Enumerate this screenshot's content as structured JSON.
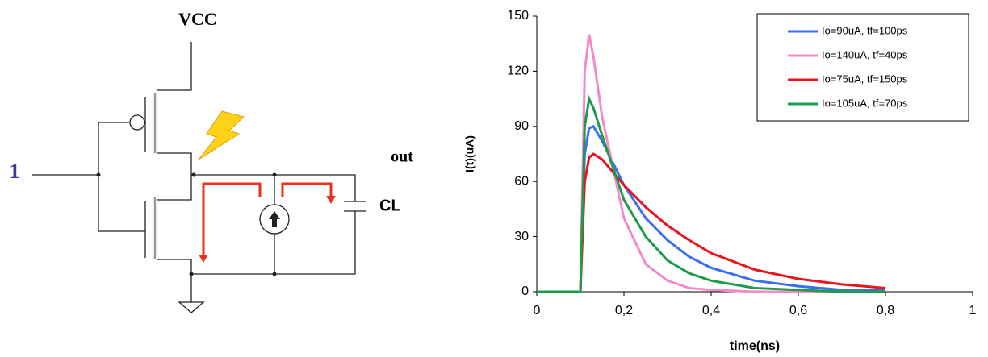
{
  "diagram": {
    "supply_label": "VCC",
    "input_label": "1",
    "output_label": "out",
    "capacitor_label": "CL"
  },
  "chart_data": {
    "type": "line",
    "x_label": "time(ns)",
    "y_label": "I(t)(uA)",
    "x": [
      0,
      0.1,
      0.105,
      0.11,
      0.12,
      0.13,
      0.15,
      0.2,
      0.25,
      0.3,
      0.35,
      0.4,
      0.5,
      0.6,
      0.7,
      0.8
    ],
    "series": [
      {
        "name": "Io=90uA, tf=100ps",
        "color": "#3a6ff0",
        "values": [
          0,
          0,
          40,
          75,
          89,
          90,
          82,
          58,
          40,
          28,
          19,
          13,
          6,
          3,
          1,
          1
        ]
      },
      {
        "name": "Io=140uA, tf=40ps",
        "color": "#f48ac8",
        "values": [
          0,
          0,
          60,
          120,
          140,
          128,
          95,
          40,
          15,
          6,
          2,
          1,
          0,
          0,
          0,
          0
        ]
      },
      {
        "name": "Io=75uA, tf=150ps",
        "color": "#e8141e",
        "values": [
          0,
          0,
          30,
          60,
          73,
          75,
          72,
          58,
          46,
          36,
          28,
          21,
          12,
          7,
          4,
          2
        ]
      },
      {
        "name": "Io=105uA, tf=70ps",
        "color": "#1f9a4a",
        "values": [
          0,
          0,
          45,
          90,
          105,
          100,
          85,
          50,
          30,
          17,
          10,
          6,
          2,
          1,
          0,
          0
        ]
      }
    ],
    "xlim": [
      0,
      1
    ],
    "ylim": [
      0,
      150
    ],
    "xticks": [
      0,
      {
        "value": 0.2,
        "label": "0,2"
      },
      {
        "value": 0.4,
        "label": "0,4"
      },
      {
        "value": 0.6,
        "label": "0,6"
      },
      {
        "value": 0.8,
        "label": "0,8"
      },
      1
    ],
    "yticks": [
      0,
      30,
      60,
      90,
      120,
      150
    ],
    "legend": "top-right"
  }
}
